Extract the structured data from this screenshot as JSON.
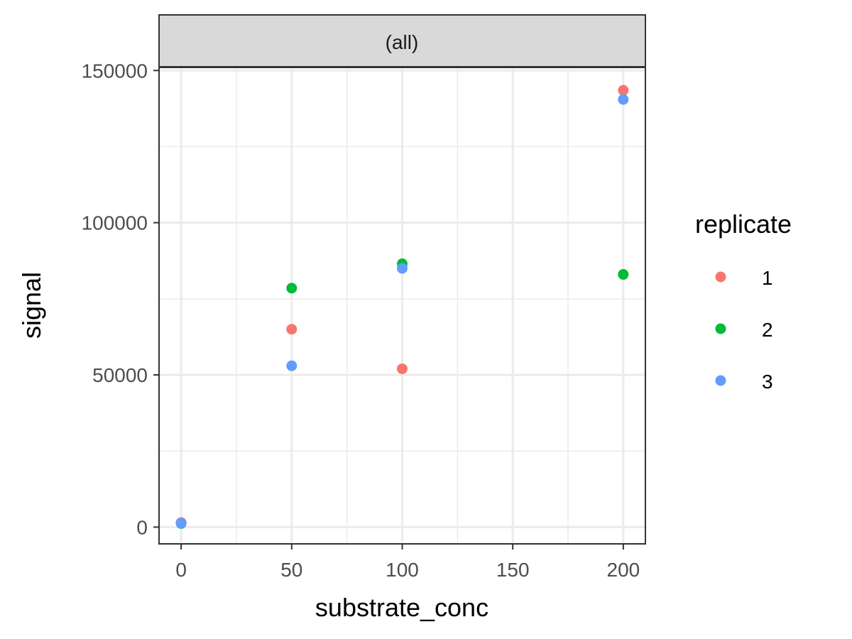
{
  "chart_data": {
    "type": "scatter",
    "facet_label": "(all)",
    "xlabel": "substrate_conc",
    "ylabel": "signal",
    "xlim": [
      -10,
      210
    ],
    "ylim": [
      -5500,
      151000
    ],
    "x_ticks": [
      0,
      50,
      100,
      150,
      200
    ],
    "x_tick_labels": [
      "0",
      "50",
      "100",
      "150",
      "200"
    ],
    "x_minor_ticks": [
      25,
      75,
      125,
      175
    ],
    "y_ticks": [
      0,
      50000,
      100000,
      150000
    ],
    "y_tick_labels": [
      "0",
      "50000",
      "100000",
      "150000"
    ],
    "y_minor_ticks": [
      25000,
      75000,
      125000
    ],
    "grid": true,
    "legend": {
      "title": "replicate",
      "position": "right",
      "entries": [
        "1",
        "2",
        "3"
      ]
    },
    "series": [
      {
        "name": "1",
        "color": "#F8766D",
        "points": [
          [
            0,
            1500
          ],
          [
            50,
            65000
          ],
          [
            100,
            52000
          ],
          [
            200,
            143500
          ]
        ]
      },
      {
        "name": "2",
        "color": "#00BA38",
        "points": [
          [
            0,
            1200
          ],
          [
            50,
            78500
          ],
          [
            100,
            86500
          ],
          [
            200,
            83000
          ]
        ]
      },
      {
        "name": "3",
        "color": "#619CFF",
        "points": [
          [
            0,
            1300
          ],
          [
            50,
            53000
          ],
          [
            100,
            85000
          ],
          [
            200,
            140500
          ]
        ]
      }
    ]
  }
}
